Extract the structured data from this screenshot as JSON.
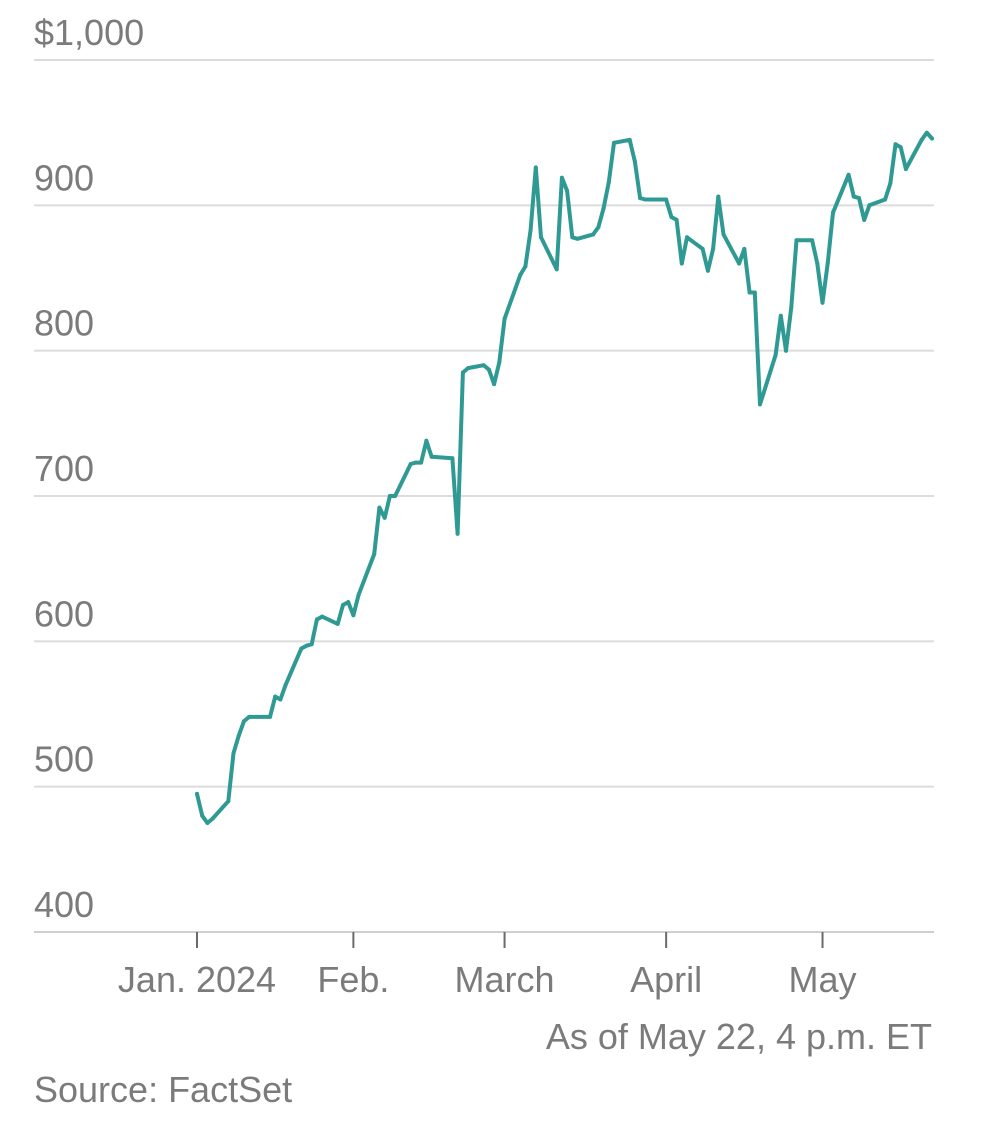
{
  "chart_data": {
    "type": "line",
    "y_ticks": [
      "$1,000",
      "900",
      "800",
      "700",
      "600",
      "500",
      "400"
    ],
    "y_tick_values": [
      1000,
      900,
      800,
      700,
      600,
      500,
      400
    ],
    "ylim": [
      400,
      1000
    ],
    "x_ticks": [
      "Jan. 2024",
      "Feb.",
      "March",
      "April",
      "May"
    ],
    "x_tick_dates": [
      "2024-01-02",
      "2024-02-01",
      "2024-03-01",
      "2024-04-01",
      "2024-05-01"
    ],
    "xlim": [
      "2024-01-02",
      "2024-05-22"
    ],
    "grid": true,
    "line_color": "#2f9a93",
    "note": "As of May 22, 4 p.m. ET",
    "source": "Source: FactSet",
    "series": [
      {
        "x": [
          "2024-01-02",
          "2024-01-03",
          "2024-01-04",
          "2024-01-05",
          "2024-01-08",
          "2024-01-09",
          "2024-01-10",
          "2024-01-11",
          "2024-01-12",
          "2024-01-16",
          "2024-01-17",
          "2024-01-18",
          "2024-01-19",
          "2024-01-22",
          "2024-01-23",
          "2024-01-24",
          "2024-01-25",
          "2024-01-26",
          "2024-01-29",
          "2024-01-30",
          "2024-01-31",
          "2024-02-01",
          "2024-02-02",
          "2024-02-05",
          "2024-02-06",
          "2024-02-07",
          "2024-02-08",
          "2024-02-09",
          "2024-02-12",
          "2024-02-13",
          "2024-02-14",
          "2024-02-15",
          "2024-02-16",
          "2024-02-20",
          "2024-02-21",
          "2024-02-22",
          "2024-02-23",
          "2024-02-26",
          "2024-02-27",
          "2024-02-28",
          "2024-02-29",
          "2024-03-01",
          "2024-03-04",
          "2024-03-05",
          "2024-03-06",
          "2024-03-07",
          "2024-03-08",
          "2024-03-11",
          "2024-03-12",
          "2024-03-13",
          "2024-03-14",
          "2024-03-15",
          "2024-03-18",
          "2024-03-19",
          "2024-03-20",
          "2024-03-21",
          "2024-03-22",
          "2024-03-25",
          "2024-03-26",
          "2024-03-27",
          "2024-03-28",
          "2024-04-01",
          "2024-04-02",
          "2024-04-03",
          "2024-04-04",
          "2024-04-05",
          "2024-04-08",
          "2024-04-09",
          "2024-04-10",
          "2024-04-11",
          "2024-04-12",
          "2024-04-15",
          "2024-04-16",
          "2024-04-17",
          "2024-04-18",
          "2024-04-19",
          "2024-04-22",
          "2024-04-23",
          "2024-04-24",
          "2024-04-25",
          "2024-04-26",
          "2024-04-29",
          "2024-04-30",
          "2024-05-01",
          "2024-05-02",
          "2024-05-03",
          "2024-05-06",
          "2024-05-07",
          "2024-05-08",
          "2024-05-09",
          "2024-05-10",
          "2024-05-13",
          "2024-05-14",
          "2024-05-15",
          "2024-05-16",
          "2024-05-17",
          "2024-05-20",
          "2024-05-21",
          "2024-05-22"
        ],
        "y": [
          495,
          480,
          475,
          478,
          490,
          523,
          535,
          545,
          548,
          548,
          562,
          560,
          570,
          595,
          597,
          598,
          615,
          617,
          612,
          625,
          627,
          618,
          632,
          660,
          692,
          685,
          700,
          700,
          722,
          723,
          723,
          738,
          727,
          726,
          674,
          785,
          788,
          790,
          787,
          777,
          792,
          822,
          852,
          858,
          883,
          926,
          878,
          856,
          919,
          910,
          878,
          877,
          880,
          885,
          898,
          916,
          943,
          945,
          930,
          905,
          904,
          904,
          892,
          890,
          860,
          878,
          870,
          855,
          870,
          906,
          880,
          860,
          870,
          840,
          840,
          763,
          797,
          824,
          800,
          830,
          876,
          876,
          860,
          833,
          860,
          895,
          921,
          906,
          905,
          890,
          900,
          904,
          915,
          942,
          940,
          925,
          945,
          950,
          946
        ]
      }
    ]
  }
}
